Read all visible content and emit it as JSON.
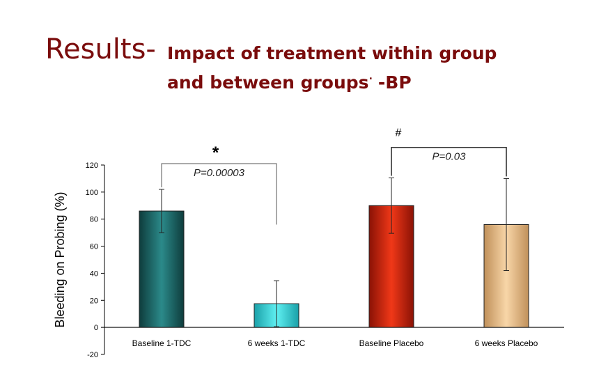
{
  "title": {
    "prefix": "Results-",
    "line1": "Impact of treatment within group",
    "line2": "and between groups",
    "line2_dot": "·",
    "line2_suffix": "-BP"
  },
  "chart_data": {
    "type": "bar",
    "title": "",
    "ylabel": "Bleeding on Probing (%)",
    "xlabel": "",
    "ylim": [
      -20,
      120
    ],
    "yticks": [
      -20,
      0,
      20,
      40,
      60,
      80,
      100,
      120
    ],
    "categories": [
      "Baseline 1-TDC",
      "6 weeks 1-TDC",
      "Baseline Placebo",
      "6 weeks Placebo"
    ],
    "values": [
      86,
      17.5,
      90,
      76
    ],
    "error": [
      16,
      17,
      20.5,
      34
    ],
    "colors": [
      "#1f6e6e",
      "#33d2d8",
      "#d42a10",
      "#e8bb88"
    ],
    "annotations": [
      {
        "from": 0,
        "to": 1,
        "label": "P=0.00003",
        "marker": "*",
        "bracket_y": 121
      },
      {
        "from": 2,
        "to": 3,
        "label": "P=0.03",
        "marker": "#",
        "bracket_y": 133
      }
    ]
  }
}
